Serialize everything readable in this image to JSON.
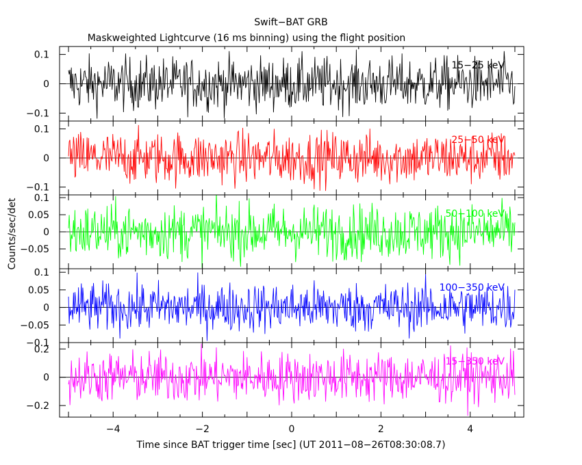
{
  "title": "Swift−BAT GRB",
  "subtitle": "Maskweighted Lightcurve (16 ms binning) using the flight position",
  "ylabel": "Counts/sec/det",
  "xlabel": "Time since BAT trigger time [sec] (UT 2011−08−26T08:30:08.7)",
  "x_ticks": [
    {
      "value": -4,
      "label": "−4"
    },
    {
      "value": -2,
      "label": "−2"
    },
    {
      "value": 0,
      "label": "0"
    },
    {
      "value": 2,
      "label": "2"
    },
    {
      "value": 4,
      "label": "4"
    }
  ],
  "chart_data": [
    {
      "type": "line",
      "series": [
        {
          "name": "15−25 keV",
          "color": "#000000",
          "x_range": [
            -5.0,
            5.0
          ],
          "bin_sec": 0.016,
          "noise_sigma": 0.045
        }
      ],
      "xlim": [
        -5.2,
        5.2
      ],
      "ylim": [
        -0.127,
        0.127
      ],
      "yticks": [
        {
          "value": 0.1,
          "label": "0.1"
        },
        {
          "value": 0,
          "label": "0"
        },
        {
          "value": -0.1,
          "label": "−0.1"
        }
      ],
      "zero_line": true
    },
    {
      "type": "line",
      "series": [
        {
          "name": "25−50 keV",
          "color": "#ff0000",
          "x_range": [
            -5.0,
            5.0
          ],
          "bin_sec": 0.016,
          "noise_sigma": 0.045
        }
      ],
      "xlim": [
        -5.2,
        5.2
      ],
      "ylim": [
        -0.127,
        0.127
      ],
      "yticks": [
        {
          "value": 0.1,
          "label": "0.1"
        },
        {
          "value": 0,
          "label": "0"
        },
        {
          "value": -0.1,
          "label": "−0.1"
        }
      ],
      "zero_line": true
    },
    {
      "type": "line",
      "series": [
        {
          "name": "50−100 keV",
          "color": "#00ff00",
          "x_range": [
            -5.0,
            5.0
          ],
          "bin_sec": 0.016,
          "noise_sigma": 0.04
        }
      ],
      "xlim": [
        -5.2,
        5.2
      ],
      "ylim": [
        -0.108,
        0.108
      ],
      "yticks": [
        {
          "value": 0.1,
          "label": "0.1"
        },
        {
          "value": 0.05,
          "label": "0.05"
        },
        {
          "value": 0,
          "label": "0"
        },
        {
          "value": -0.05,
          "label": "−0.05"
        }
      ],
      "zero_line": true
    },
    {
      "type": "line",
      "series": [
        {
          "name": "100−350 keV",
          "color": "#0000ff",
          "x_range": [
            -5.0,
            5.0
          ],
          "bin_sec": 0.016,
          "noise_sigma": 0.035
        }
      ],
      "xlim": [
        -5.2,
        5.2
      ],
      "ylim": [
        -0.1,
        0.11
      ],
      "yticks": [
        {
          "value": 0.1,
          "label": "0.1"
        },
        {
          "value": 0.05,
          "label": "0.05"
        },
        {
          "value": 0,
          "label": "0"
        },
        {
          "value": -0.05,
          "label": "−0.05"
        },
        {
          "value": -0.1,
          "label": "−0.1"
        }
      ],
      "zero_line": true
    },
    {
      "type": "line",
      "series": [
        {
          "name": "15−350 keV",
          "color": "#ff00ff",
          "x_range": [
            -5.0,
            5.0
          ],
          "bin_sec": 0.016,
          "noise_sigma": 0.09
        }
      ],
      "xlim": [
        -5.2,
        5.2
      ],
      "ylim": [
        -0.282,
        0.245
      ],
      "yticks": [
        {
          "value": 0.2,
          "label": "0.2"
        },
        {
          "value": 0,
          "label": "0"
        },
        {
          "value": -0.2,
          "label": "−0.2"
        }
      ],
      "zero_line": true
    }
  ]
}
